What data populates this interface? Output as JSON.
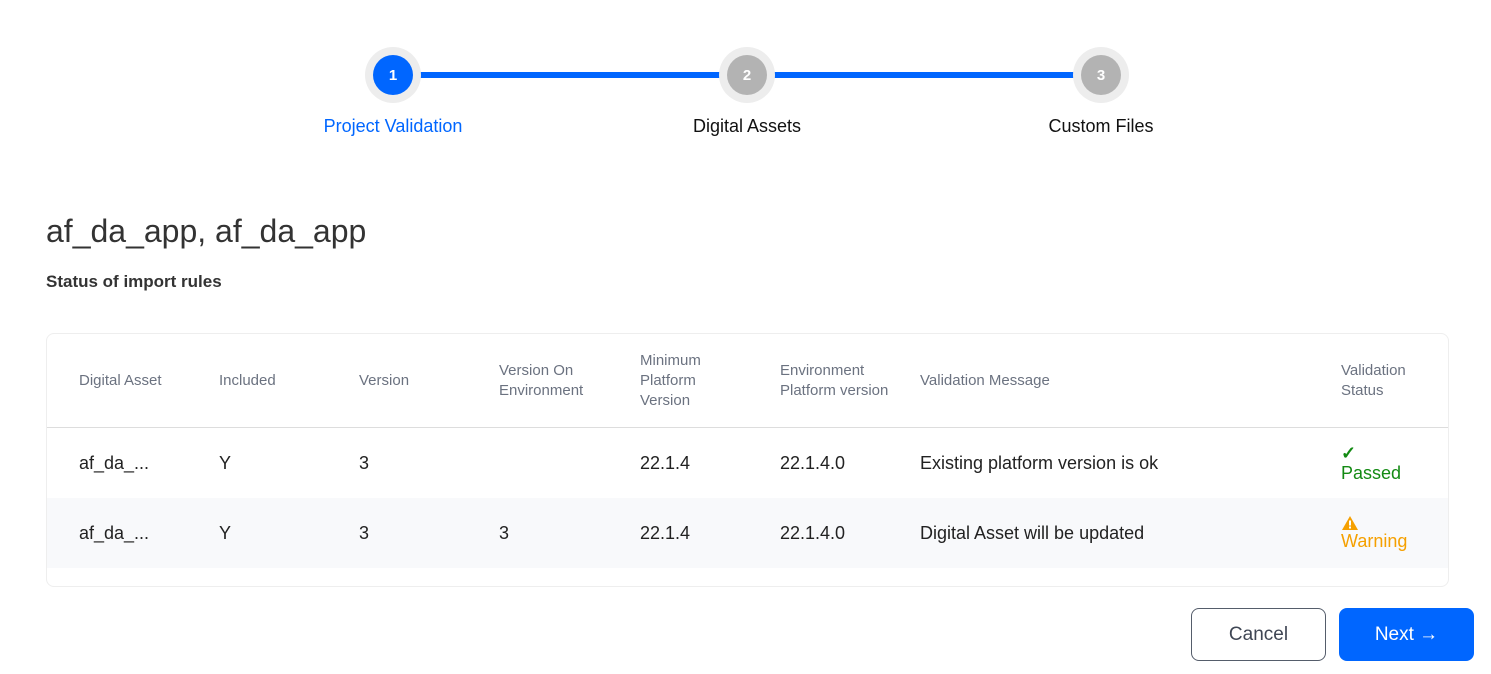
{
  "stepper": {
    "steps": [
      {
        "number": "1",
        "label": "Project Validation",
        "state": "active"
      },
      {
        "number": "2",
        "label": "Digital Assets",
        "state": "inactive"
      },
      {
        "number": "3",
        "label": "Custom Files",
        "state": "inactive"
      }
    ]
  },
  "title": "af_da_app, af_da_app",
  "subtitle": "Status of import rules",
  "table": {
    "headers": [
      "Digital Asset",
      "Included",
      "Version",
      "Version On Environment",
      "Minimum Platform Version",
      "Environment Platform version",
      "Validation Message",
      "Validation Status"
    ],
    "rows": [
      {
        "asset": "af_da_...",
        "included": "Y",
        "version": "3",
        "version_env": "",
        "min_platform": "22.1.4",
        "env_platform": "22.1.4.0",
        "message": "Existing platform version is ok",
        "status_icon": "check-icon",
        "status": "Passed"
      },
      {
        "asset": "af_da_...",
        "included": "Y",
        "version": "3",
        "version_env": "3",
        "min_platform": "22.1.4",
        "env_platform": "22.1.4.0",
        "message": "Digital Asset will be updated",
        "status_icon": "warning-icon",
        "status": "Warning"
      }
    ]
  },
  "colors": {
    "accent": "#0066ff",
    "passed": "#138a13",
    "warning": "#f5a000"
  },
  "buttons": {
    "cancel": "Cancel",
    "next": "Next →"
  }
}
